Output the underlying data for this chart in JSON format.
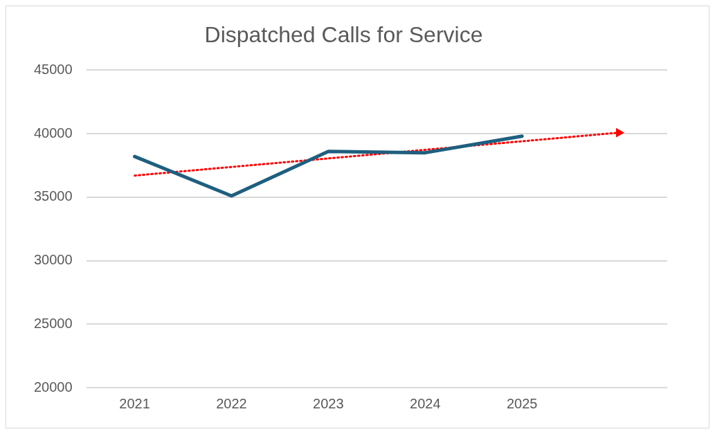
{
  "chart_data": {
    "type": "line",
    "title": "Dispatched Calls for Service",
    "categories": [
      "2021",
      "2022",
      "2023",
      "2024",
      "2025",
      null
    ],
    "series": [
      {
        "color": "#1f5f7f",
        "values": [
          38200,
          35100,
          38600,
          38500,
          39800,
          null
        ],
        "line_style": "solid"
      },
      {
        "type": "line",
        "color": "#ff0000",
        "values": [
          36700,
          37380,
          38050,
          38730,
          39400,
          40080
        ],
        "line_style": "dotted"
      }
    ],
    "ylim": [
      20000,
      45000
    ],
    "yticks": [
      20000,
      25000,
      30000,
      35000,
      40000,
      45000
    ],
    "grid": "y",
    "legend": false,
    "marker": "none"
  }
}
